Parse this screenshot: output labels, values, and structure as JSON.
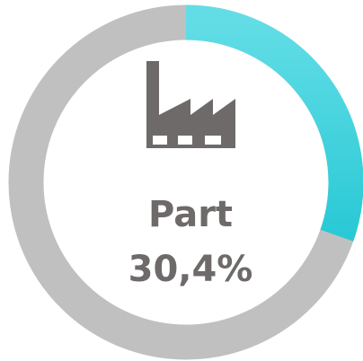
{
  "chart_data": {
    "type": "donut",
    "title": "Part",
    "values": [
      30.4
    ],
    "value_labels": [
      "30,4%"
    ],
    "color": "#3dd6e0",
    "track_color": "#c0c0c0"
  }
}
